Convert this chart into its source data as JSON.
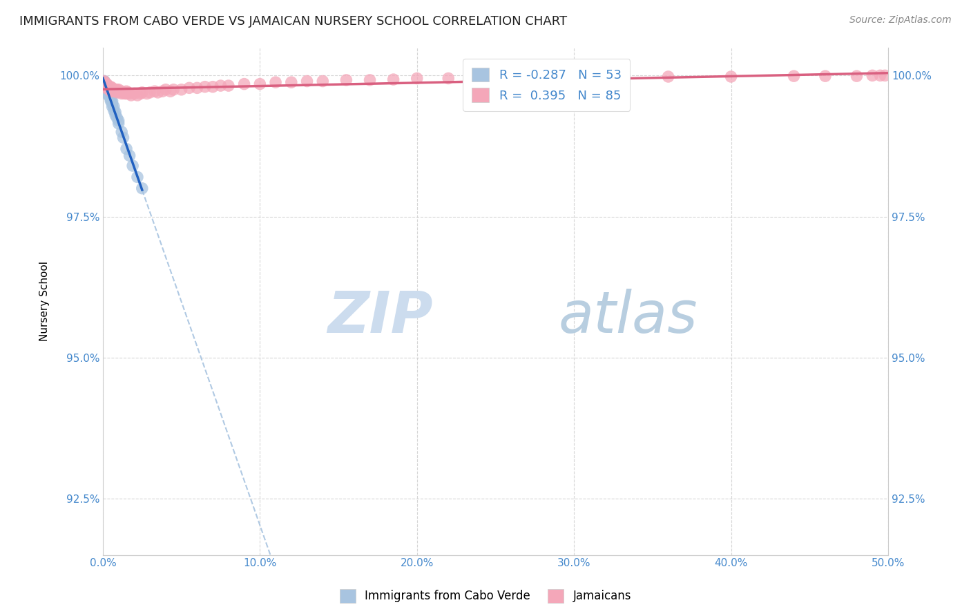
{
  "title": "IMMIGRANTS FROM CABO VERDE VS JAMAICAN NURSERY SCHOOL CORRELATION CHART",
  "source": "Source: ZipAtlas.com",
  "ylabel": "Nursery School",
  "r_cabo": -0.287,
  "n_cabo": 53,
  "r_jamaican": 0.395,
  "n_jamaican": 85,
  "legend_label_cabo": "Immigrants from Cabo Verde",
  "legend_label_jamaican": "Jamaicans",
  "color_cabo": "#a8c4e0",
  "color_jamaican": "#f4a7b9",
  "line_color_cabo": "#2060c0",
  "line_color_jamaican": "#d96080",
  "watermark_zip": "ZIP",
  "watermark_atlas": "atlas",
  "cabo_x": [
    0.0005,
    0.0008,
    0.001,
    0.001,
    0.0012,
    0.0012,
    0.0015,
    0.0015,
    0.0015,
    0.0018,
    0.002,
    0.002,
    0.002,
    0.002,
    0.002,
    0.002,
    0.002,
    0.002,
    0.0025,
    0.0025,
    0.003,
    0.003,
    0.003,
    0.003,
    0.003,
    0.0035,
    0.0035,
    0.004,
    0.004,
    0.004,
    0.004,
    0.004,
    0.005,
    0.005,
    0.005,
    0.005,
    0.006,
    0.006,
    0.006,
    0.007,
    0.007,
    0.008,
    0.008,
    0.009,
    0.01,
    0.01,
    0.012,
    0.013,
    0.015,
    0.017,
    0.019,
    0.022,
    0.025
  ],
  "cabo_y": [
    0.9985,
    0.999,
    0.9985,
    0.999,
    0.9985,
    0.9975,
    0.9985,
    0.998,
    0.9975,
    0.998,
    0.9985,
    0.998,
    0.9975,
    0.9975,
    0.998,
    0.9975,
    0.998,
    0.9975,
    0.9975,
    0.9975,
    0.9975,
    0.9975,
    0.997,
    0.9975,
    0.997,
    0.9965,
    0.997,
    0.997,
    0.9965,
    0.9965,
    0.9968,
    0.997,
    0.996,
    0.9965,
    0.9958,
    0.9955,
    0.9955,
    0.995,
    0.9945,
    0.9945,
    0.9938,
    0.9935,
    0.993,
    0.9925,
    0.992,
    0.9915,
    0.99,
    0.989,
    0.987,
    0.9858,
    0.984,
    0.982,
    0.98
  ],
  "jamaican_x": [
    0.0005,
    0.0008,
    0.001,
    0.001,
    0.0012,
    0.0012,
    0.0015,
    0.0015,
    0.002,
    0.002,
    0.002,
    0.002,
    0.0025,
    0.003,
    0.003,
    0.003,
    0.004,
    0.004,
    0.004,
    0.005,
    0.005,
    0.005,
    0.005,
    0.006,
    0.006,
    0.006,
    0.007,
    0.007,
    0.008,
    0.008,
    0.009,
    0.009,
    0.01,
    0.01,
    0.011,
    0.012,
    0.012,
    0.013,
    0.014,
    0.015,
    0.015,
    0.016,
    0.017,
    0.018,
    0.02,
    0.022,
    0.024,
    0.025,
    0.028,
    0.03,
    0.033,
    0.035,
    0.038,
    0.04,
    0.043,
    0.045,
    0.05,
    0.055,
    0.06,
    0.065,
    0.07,
    0.075,
    0.08,
    0.09,
    0.1,
    0.11,
    0.12,
    0.13,
    0.14,
    0.155,
    0.17,
    0.185,
    0.2,
    0.22,
    0.25,
    0.28,
    0.32,
    0.36,
    0.4,
    0.44,
    0.46,
    0.48,
    0.49,
    0.495,
    0.498
  ],
  "jamaican_y": [
    0.9985,
    0.999,
    0.9985,
    0.9988,
    0.9985,
    0.9982,
    0.998,
    0.9985,
    0.9985,
    0.998,
    0.9982,
    0.9978,
    0.9985,
    0.998,
    0.9982,
    0.9978,
    0.998,
    0.9978,
    0.9975,
    0.998,
    0.9978,
    0.9975,
    0.9972,
    0.9975,
    0.9972,
    0.9978,
    0.9975,
    0.9972,
    0.9975,
    0.9972,
    0.9975,
    0.997,
    0.9975,
    0.9972,
    0.997,
    0.9972,
    0.9968,
    0.997,
    0.9968,
    0.9972,
    0.9968,
    0.997,
    0.9968,
    0.9965,
    0.9968,
    0.9965,
    0.9968,
    0.997,
    0.9968,
    0.997,
    0.9972,
    0.997,
    0.9972,
    0.9975,
    0.9972,
    0.9975,
    0.9975,
    0.9978,
    0.9978,
    0.998,
    0.998,
    0.9982,
    0.9982,
    0.9985,
    0.9985,
    0.9988,
    0.9988,
    0.999,
    0.999,
    0.9992,
    0.9992,
    0.9993,
    0.9995,
    0.9995,
    0.9995,
    0.9996,
    0.9997,
    0.9998,
    0.9998,
    0.9999,
    0.9999,
    0.9999,
    1.0,
    1.0,
    1.0
  ],
  "xlim": [
    0.0,
    0.5
  ],
  "ylim": [
    0.915,
    1.005
  ],
  "yticks": [
    0.925,
    0.95,
    0.975,
    1.0
  ],
  "ytick_labels": [
    "92.5%",
    "95.0%",
    "97.5%",
    "100.0%"
  ],
  "xticks": [
    0.0,
    0.1,
    0.2,
    0.3,
    0.4,
    0.5
  ],
  "xtick_labels": [
    "0.0%",
    "10.0%",
    "20.0%",
    "30.0%",
    "40.0%",
    "50.0%"
  ],
  "grid_color": "#cccccc",
  "bg_color": "#ffffff",
  "title_fontsize": 13,
  "axis_label_fontsize": 11,
  "tick_fontsize": 11,
  "watermark_color": "#ccdcee",
  "watermark_fontsize": 60,
  "dash_line_color": "#a8c4e0"
}
